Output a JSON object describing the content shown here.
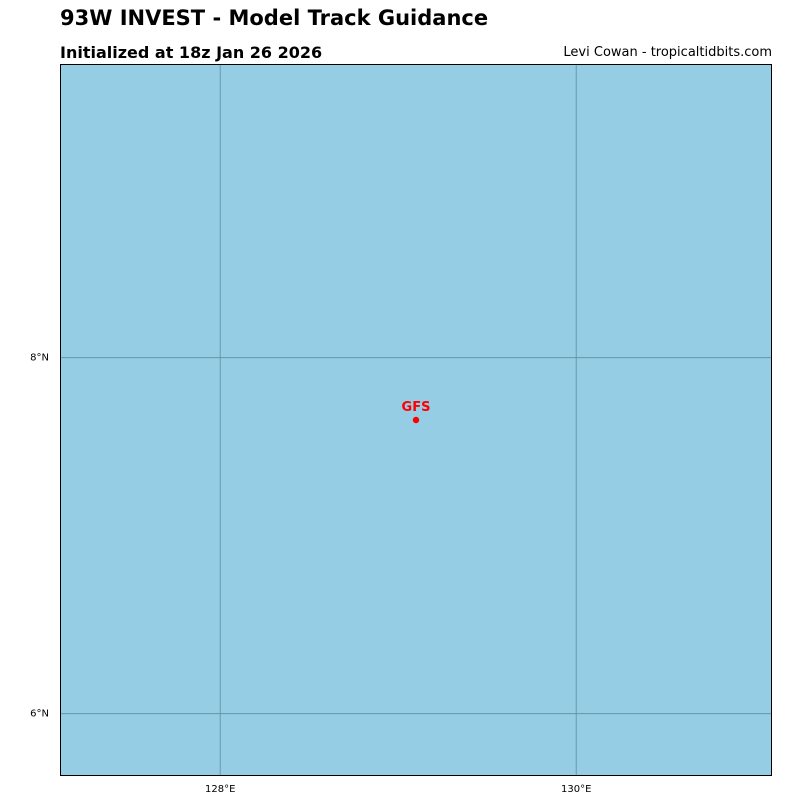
{
  "header": {
    "title": "93W INVEST - Model Track Guidance",
    "subtitle": "Initialized at 18z Jan 26 2026",
    "credit": "Levi Cowan - tropicaltidbits.com"
  },
  "map": {
    "projection": "equirectangular",
    "extent": {
      "lon_min": 127.1,
      "lon_max": 131.1,
      "lat_min": 5.65,
      "lat_max": 9.65
    },
    "ocean_color": "#95cde4",
    "grid_color": "#5f8e9c",
    "track_color": "#ff0000",
    "meridians": [
      {
        "lon": 128,
        "label": "128°E"
      },
      {
        "lon": 130,
        "label": "130°E"
      }
    ],
    "parallels": [
      {
        "lat": 8,
        "label": "8°N"
      },
      {
        "lat": 6,
        "label": "6°N"
      }
    ],
    "model_points": [
      {
        "model": "GFS",
        "lon": 129.1,
        "lat": 7.65
      }
    ]
  }
}
